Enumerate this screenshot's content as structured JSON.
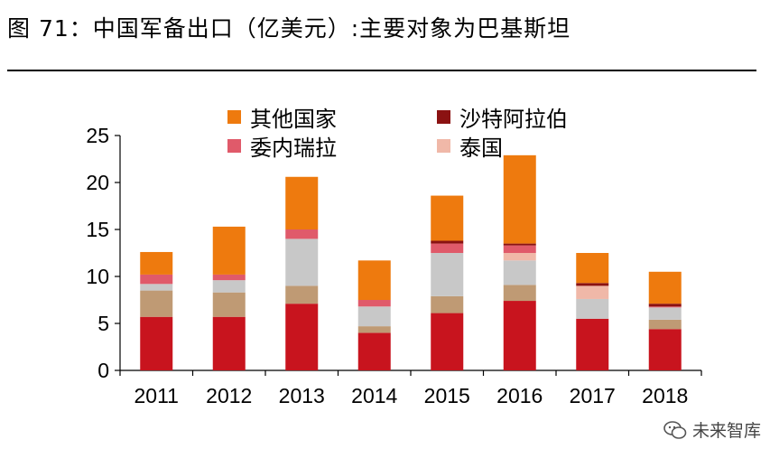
{
  "title": "图 71：中国军备出口（亿美元）:主要对象为巴基斯坦",
  "watermark": "未来智库",
  "chart_data": {
    "type": "bar",
    "stacked": true,
    "categories": [
      "2011",
      "2012",
      "2013",
      "2014",
      "2015",
      "2016",
      "2017",
      "2018"
    ],
    "ylim": [
      0,
      25
    ],
    "yticks": [
      0,
      5,
      10,
      15,
      20,
      25
    ],
    "legend_placement": "top",
    "series": [
      {
        "name": "",
        "color": "#C8141E",
        "values": [
          5.7,
          5.7,
          7.1,
          4.0,
          6.1,
          7.4,
          5.5,
          4.4
        ]
      },
      {
        "name": "",
        "color": "#BF9A74",
        "values": [
          2.8,
          2.6,
          1.9,
          0.7,
          1.8,
          1.7,
          0.0,
          1.0
        ]
      },
      {
        "name": "",
        "color": "#C8C8C8",
        "values": [
          0.7,
          1.3,
          5.0,
          2.1,
          4.6,
          2.6,
          2.1,
          1.3
        ]
      },
      {
        "name": "泰国",
        "color": "#F0B8A8",
        "values": [
          0.0,
          0.0,
          0.0,
          0.0,
          0.0,
          0.8,
          1.4,
          0.0
        ]
      },
      {
        "name": "委内瑞拉",
        "color": "#E05A6A",
        "values": [
          1.0,
          0.6,
          1.0,
          0.7,
          1.0,
          0.8,
          0.0,
          0.1
        ]
      },
      {
        "name": "沙特阿拉伯",
        "color": "#8B1212",
        "values": [
          0.0,
          0.0,
          0.0,
          0.0,
          0.3,
          0.2,
          0.3,
          0.3
        ]
      },
      {
        "name": "其他国家",
        "color": "#EE7A0E",
        "values": [
          2.4,
          5.1,
          5.6,
          4.2,
          4.8,
          9.4,
          3.2,
          3.4
        ]
      }
    ]
  },
  "legend": [
    {
      "label": "其他国家",
      "color": "#EE7A0E"
    },
    {
      "label": "沙特阿拉伯",
      "color": "#8B1212"
    },
    {
      "label": "委内瑞拉",
      "color": "#E05A6A"
    },
    {
      "label": "泰国",
      "color": "#F0B8A8"
    }
  ]
}
